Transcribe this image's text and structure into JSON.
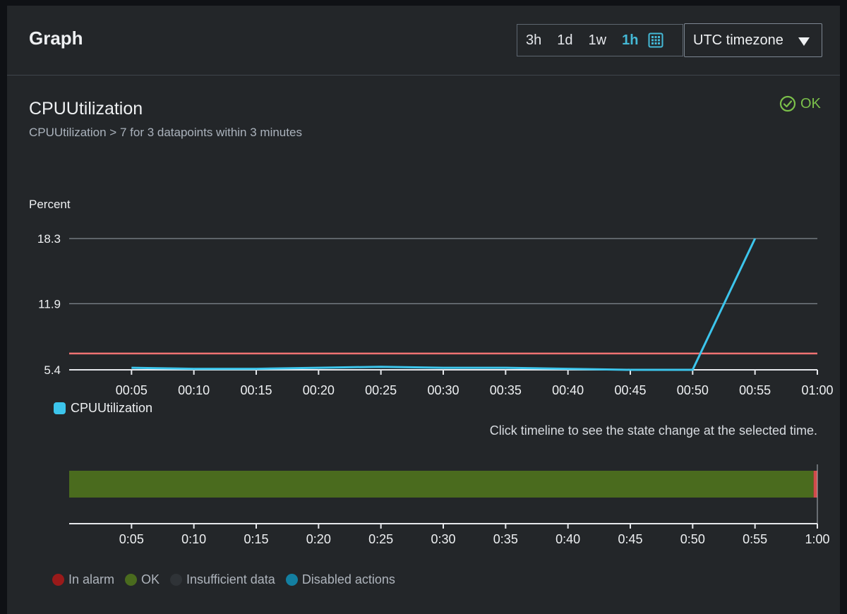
{
  "header": {
    "title": "Graph",
    "ranges": [
      "3h",
      "1d",
      "1w",
      "1h"
    ],
    "active_range": "1h",
    "timezone": "UTC timezone"
  },
  "chart_header": {
    "title": "CPUUtilization",
    "subtitle": "CPUUtilization > 7 for 3 datapoints within 3 minutes",
    "status": "OK"
  },
  "chart_data": {
    "type": "line",
    "ylabel": "Percent",
    "ylim": [
      5.4,
      18.3
    ],
    "yticks": [
      "18.3",
      "11.9",
      "5.4"
    ],
    "xlim": [
      "00:00",
      "01:00"
    ],
    "xticks": [
      "00:05",
      "00:10",
      "00:15",
      "00:20",
      "00:25",
      "00:30",
      "00:35",
      "00:40",
      "00:45",
      "00:50",
      "00:55",
      "01:00"
    ],
    "threshold": 7,
    "series": [
      {
        "name": "CPUUtilization",
        "color": "#3cc5ec",
        "x": [
          "00:05",
          "00:10",
          "00:15",
          "00:20",
          "00:25",
          "00:30",
          "00:35",
          "00:40",
          "00:45",
          "00:50",
          "00:55"
        ],
        "y": [
          5.6,
          5.5,
          5.5,
          5.6,
          5.7,
          5.6,
          5.6,
          5.5,
          5.4,
          5.4,
          18.3
        ]
      }
    ],
    "grid": true
  },
  "timeline": {
    "hint": "Click timeline to see the state change at the selected time.",
    "ticks": [
      "0:05",
      "0:10",
      "0:15",
      "0:20",
      "0:25",
      "0:30",
      "0:35",
      "0:40",
      "0:45",
      "0:50",
      "0:55",
      "1:00"
    ],
    "segments": [
      {
        "state": "OK",
        "start": "00:00",
        "end": "00:59.7"
      },
      {
        "state": "In alarm",
        "start": "00:59.7",
        "end": "01:00"
      }
    ]
  },
  "state_legend": [
    {
      "label": "In alarm",
      "color": "#9a1a1a"
    },
    {
      "label": "OK",
      "color": "#4a6b1e"
    },
    {
      "label": "Insufficient data",
      "color": "#2f3337"
    },
    {
      "label": "Disabled actions",
      "color": "#137fa1"
    }
  ],
  "colors": {
    "accent": "#44b9d6",
    "ok": "#7bc04a",
    "threshold": "#f07373",
    "series": "#3cc5ec",
    "ok_bar": "#4a6b1e",
    "alarm_bar": "#d24b4b"
  }
}
